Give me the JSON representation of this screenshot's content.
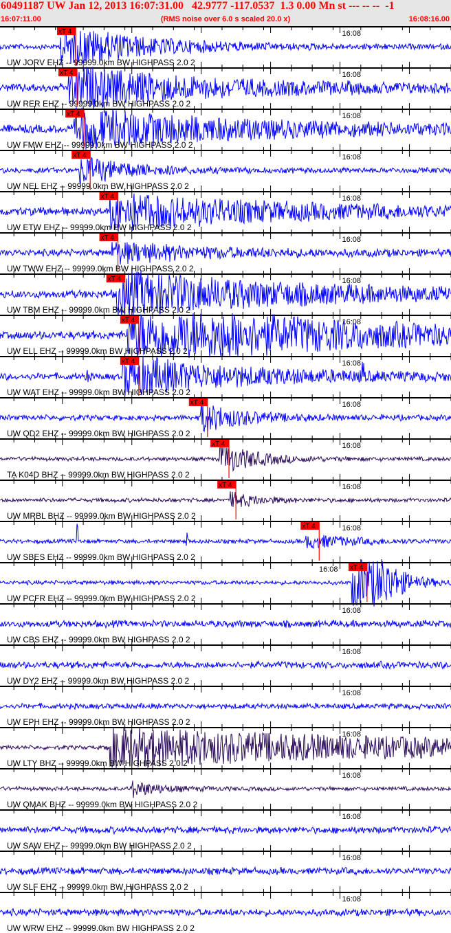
{
  "header": {
    "title": "60491187 UW Jan 12, 2013 16:07:31.00   42.9777 -117.0537  1.3 0.00 Mn st --- -- --  -1",
    "start_time": "16:07:11.00",
    "note": "(RMS noise over 6.0 s scaled 20.0 x)",
    "end_time": "16:08:16.00"
  },
  "colors": {
    "header_text": "#ff0000",
    "header_bg": "#e6e6e6",
    "ehz_trace": "#0000ff",
    "bhz_trace": "#2a0a5a",
    "pick": "#ff0000",
    "axis": "#000000"
  },
  "chart_data": {
    "type": "line",
    "title": "",
    "x_range": [
      "16:07:11.00",
      "16:08:16.00"
    ],
    "x_tick_label": "16:08",
    "pick_label": "xT 4",
    "traces": [
      {
        "label": "UW JORV EHZ -- 99999.0km BW  HIGHPASS  2.0  2",
        "component": "EHZ",
        "pick_time": "16:07:21.9"
      },
      {
        "label": "UW RER EHZ -- 99999.0km BW  HIGHPASS  2.0  2",
        "component": "EHZ",
        "pick_time": "16:07:22.1"
      },
      {
        "label": "UW FMW EHZ -- 99999.0km BW  HIGHPASS  2.0  2",
        "component": "EHZ",
        "pick_time": "16:07:23.1"
      },
      {
        "label": "UW NEL EHZ -- 99999.0km BW  HIGHPASS  2.0  2",
        "component": "EHZ",
        "pick_time": "16:07:24.0"
      },
      {
        "label": "UW ETW EHZ -- 99999.0km BW  HIGHPASS  2.0  2",
        "component": "EHZ",
        "pick_time": "16:07:28.0"
      },
      {
        "label": "UW TWW EHZ -- 99999.0km BW  HIGHPASS  2.0  2",
        "component": "EHZ",
        "pick_time": "16:07:28.0"
      },
      {
        "label": "UW TBM EHZ -- 99999.0km BW  HIGHPASS  2.0  2",
        "component": "EHZ",
        "pick_time": "16:07:29.0"
      },
      {
        "label": "UW ELL EHZ -- 99999.0km BW  HIGHPASS  2.0  2",
        "component": "EHZ",
        "pick_time": "16:07:31.0"
      },
      {
        "label": "UW WAT EHZ -- 99999.0km BW  HIGHPASS  2.0  2",
        "component": "EHZ",
        "pick_time": "16:07:31.0"
      },
      {
        "label": "UW QD2 EHZ -- 99999.0km BW  HIGHPASS  2.0  2",
        "component": "EHZ",
        "pick_time": "16:07:40.9"
      },
      {
        "label": "TA K04D BHZ -- 99999.0km BW  HIGHPASS  2.0  2",
        "component": "BHZ",
        "pick_time": "16:07:44.0"
      },
      {
        "label": "UW MRBL BHZ -- 99999.0km BW  HIGHPASS  2.0  2",
        "component": "BHZ",
        "pick_time": "16:07:45.0"
      },
      {
        "label": "UW SBES EHZ -- 99999.0km BW  HIGHPASS  2.0  2",
        "component": "EHZ",
        "pick_time": "16:07:57.0"
      },
      {
        "label": "UW PCFR EHZ -- 99999.0km BW  HIGHPASS  2.0  2",
        "component": "EHZ",
        "pick_time": "16:08:03.9"
      },
      {
        "label": "UW CBS EHZ -- 99999.0km BW  HIGHPASS  2.0  2",
        "component": "EHZ"
      },
      {
        "label": "UW DY2 EHZ -- 99999.0km BW  HIGHPASS  2.0  2",
        "component": "EHZ"
      },
      {
        "label": "UW EPH EHZ -- 99999.0km BW  HIGHPASS  2.0  2",
        "component": "EHZ"
      },
      {
        "label": "UW LTY BHZ -- 99999.0km BW  HIGHPASS  2.0  2",
        "component": "BHZ"
      },
      {
        "label": "UW QMAK BHZ -- 99999.0km BW  HIGHPASS  2.0  2",
        "component": "BHZ"
      },
      {
        "label": "UW SAW EHZ -- 99999.0km BW  HIGHPASS  2.0  2",
        "component": "EHZ"
      },
      {
        "label": "UW SLF EHZ -- 99999.0km BW  HIGHPASS  2.0  2",
        "component": "EHZ"
      },
      {
        "label": "UW WRW EHZ -- 99999.0km BW  HIGHPASS  2.0  2",
        "component": "EHZ"
      }
    ]
  }
}
